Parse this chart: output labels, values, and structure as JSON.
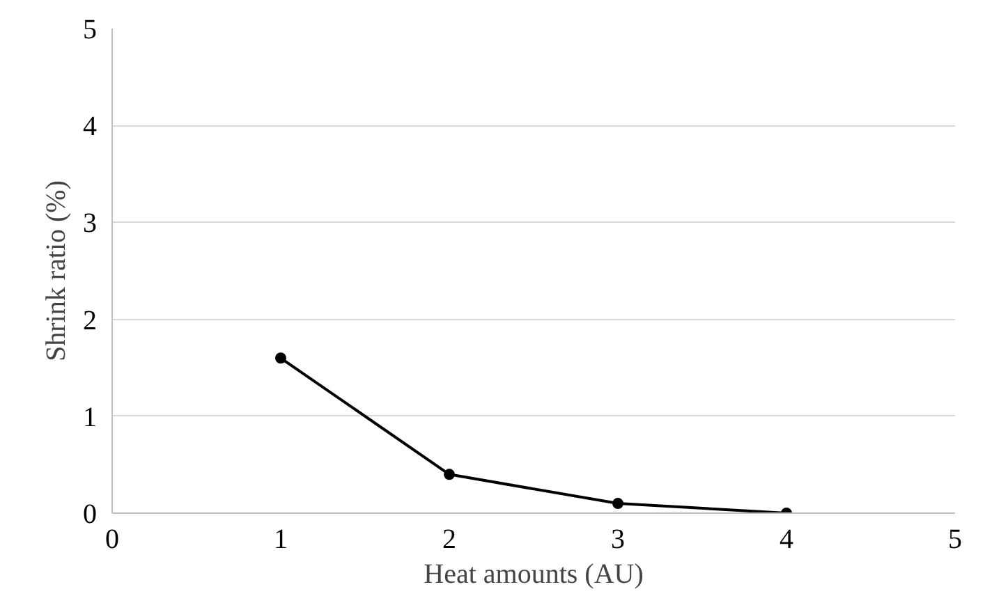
{
  "chart_data": {
    "type": "line",
    "xlabel": "Heat amounts (AU)",
    "ylabel": "Shrink ratio (%)",
    "x": [
      1,
      2,
      3,
      4
    ],
    "series": [
      {
        "color": "#000000",
        "values": [
          1.6,
          0.4,
          0.1,
          0
        ]
      }
    ],
    "xlim": [
      0,
      5
    ],
    "ylim": [
      0,
      5
    ],
    "xticks": [
      0,
      1,
      2,
      3,
      4,
      5
    ],
    "yticks": [
      0,
      1,
      2,
      3,
      4,
      5
    ],
    "grid": "y",
    "marker": "circle",
    "line_style": "solid"
  }
}
